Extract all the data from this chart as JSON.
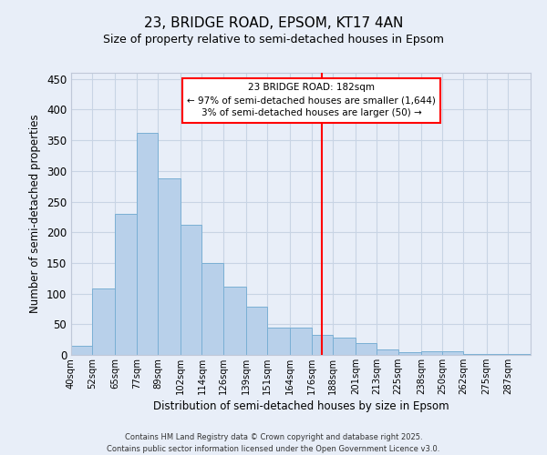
{
  "title": "23, BRIDGE ROAD, EPSOM, KT17 4AN",
  "subtitle": "Size of property relative to semi-detached houses in Epsom",
  "xlabel": "Distribution of semi-detached houses by size in Epsom",
  "ylabel": "Number of semi-detached properties",
  "footer_line1": "Contains HM Land Registry data © Crown copyright and database right 2025.",
  "footer_line2": "Contains public sector information licensed under the Open Government Licence v3.0.",
  "bins": [
    40,
    52,
    65,
    77,
    89,
    102,
    114,
    126,
    139,
    151,
    164,
    176,
    188,
    201,
    213,
    225,
    238,
    250,
    262,
    275,
    287,
    300
  ],
  "bin_labels": [
    "40sqm",
    "52sqm",
    "65sqm",
    "77sqm",
    "89sqm",
    "102sqm",
    "114sqm",
    "126sqm",
    "139sqm",
    "151sqm",
    "164sqm",
    "176sqm",
    "188sqm",
    "201sqm",
    "213sqm",
    "225sqm",
    "238sqm",
    "250sqm",
    "262sqm",
    "275sqm",
    "287sqm"
  ],
  "values": [
    15,
    108,
    230,
    362,
    288,
    212,
    150,
    111,
    79,
    45,
    45,
    33,
    28,
    20,
    9,
    4,
    6,
    6,
    2,
    1,
    2
  ],
  "bar_color": "#b8d0ea",
  "bar_edge_color": "#7aafd4",
  "grid_color": "#c8d4e4",
  "background_color": "#e8eef8",
  "vline_x": 182,
  "vline_color": "red",
  "annotation_title": "23 BRIDGE ROAD: 182sqm",
  "annotation_line2": "← 97% of semi-detached houses are smaller (1,644)",
  "annotation_line3": "3% of semi-detached houses are larger (50) →",
  "annotation_box_color": "red",
  "ylim": [
    0,
    460
  ],
  "yticks": [
    0,
    50,
    100,
    150,
    200,
    250,
    300,
    350,
    400,
    450
  ]
}
